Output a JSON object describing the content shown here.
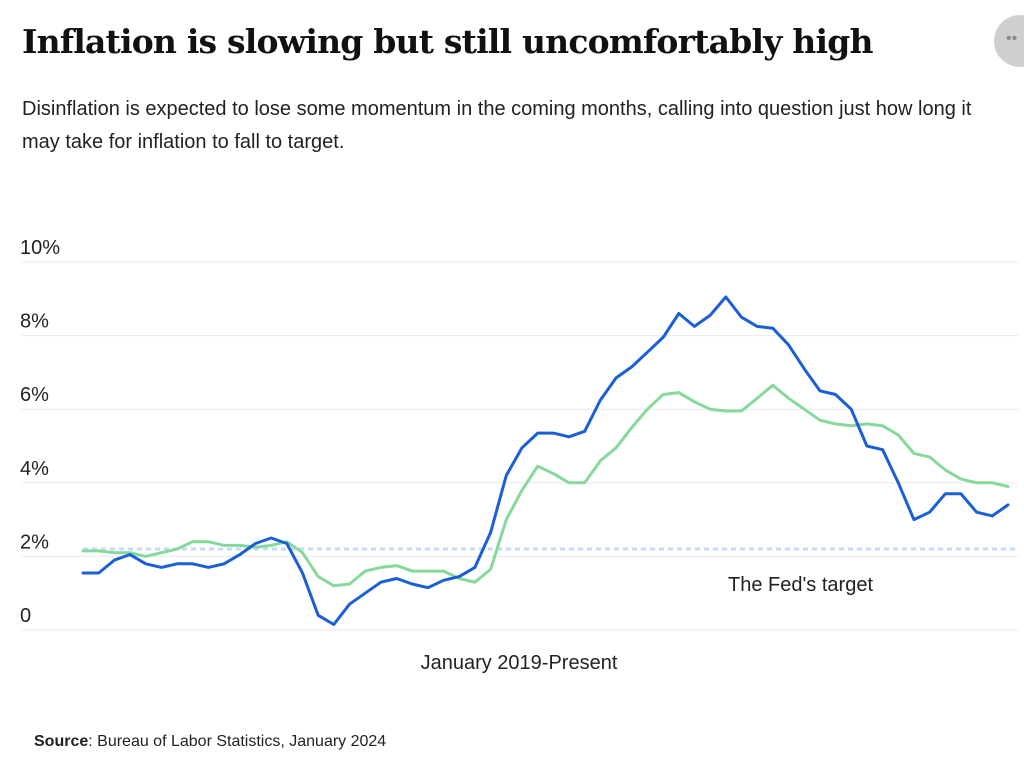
{
  "header": {
    "title": "Inflation is slowing but still uncomfortably high",
    "subtitle": "Disinflation is expected to lose some momentum in the coming months, calling into question just how long it may take for inflation to fall to target.",
    "more_icon": "ellipsis-icon"
  },
  "source": {
    "label": "Source",
    "text": ": Bureau of Labor Statistics, January 2024"
  },
  "chart_data": {
    "type": "line",
    "xlabel": "January 2019-Present",
    "ylabel": "",
    "ylim": [
      0,
      10
    ],
    "y_ticks": [
      {
        "value": 0,
        "label": "0"
      },
      {
        "value": 2,
        "label": "2%"
      },
      {
        "value": 4,
        "label": "4%"
      },
      {
        "value": 6,
        "label": "6%"
      },
      {
        "value": 8,
        "label": "8%"
      },
      {
        "value": 10,
        "label": "10%"
      }
    ],
    "x": [
      "2019-01",
      "2019-02",
      "2019-03",
      "2019-04",
      "2019-05",
      "2019-06",
      "2019-07",
      "2019-08",
      "2019-09",
      "2019-10",
      "2019-11",
      "2019-12",
      "2020-01",
      "2020-02",
      "2020-03",
      "2020-04",
      "2020-05",
      "2020-06",
      "2020-07",
      "2020-08",
      "2020-09",
      "2020-10",
      "2020-11",
      "2020-12",
      "2021-01",
      "2021-02",
      "2021-03",
      "2021-04",
      "2021-05",
      "2021-06",
      "2021-07",
      "2021-08",
      "2021-09",
      "2021-10",
      "2021-11",
      "2021-12",
      "2022-01",
      "2022-02",
      "2022-03",
      "2022-04",
      "2022-05",
      "2022-06",
      "2022-07",
      "2022-08",
      "2022-09",
      "2022-10",
      "2022-11",
      "2022-12",
      "2023-01",
      "2023-02",
      "2023-03",
      "2023-04",
      "2023-05",
      "2023-06",
      "2023-07",
      "2023-08",
      "2023-09",
      "2023-10",
      "2023-11",
      "2023-12"
    ],
    "series": [
      {
        "color": "#1a5fd6",
        "values": [
          1.55,
          1.55,
          1.9,
          2.05,
          1.8,
          1.7,
          1.8,
          1.8,
          1.7,
          1.8,
          2.05,
          2.35,
          2.5,
          2.35,
          1.55,
          0.4,
          0.15,
          0.7,
          1.0,
          1.3,
          1.4,
          1.25,
          1.15,
          1.35,
          1.45,
          1.7,
          2.65,
          4.2,
          4.95,
          5.35,
          5.35,
          5.25,
          5.4,
          6.25,
          6.85,
          7.15,
          7.55,
          7.95,
          8.6,
          8.25,
          8.55,
          9.05,
          8.5,
          8.25,
          8.2,
          7.75,
          7.1,
          6.5,
          6.4,
          6.0,
          5.0,
          4.9,
          4.0,
          3.0,
          3.2,
          3.7,
          3.7,
          3.2,
          3.1,
          3.4
        ]
      },
      {
        "color": "#86d99a",
        "values": [
          2.15,
          2.15,
          2.1,
          2.1,
          2.0,
          2.1,
          2.2,
          2.4,
          2.4,
          2.3,
          2.3,
          2.25,
          2.3,
          2.4,
          2.1,
          1.45,
          1.2,
          1.25,
          1.6,
          1.7,
          1.75,
          1.6,
          1.6,
          1.6,
          1.4,
          1.3,
          1.65,
          3.0,
          3.8,
          4.45,
          4.25,
          4.0,
          4.0,
          4.6,
          4.95,
          5.5,
          6.0,
          6.4,
          6.45,
          6.2,
          6.0,
          5.95,
          5.95,
          6.3,
          6.65,
          6.3,
          6.0,
          5.7,
          5.6,
          5.55,
          5.6,
          5.55,
          5.3,
          4.8,
          4.7,
          4.35,
          4.1,
          4.0,
          4.0,
          3.9
        ]
      }
    ],
    "target": {
      "value": 2.2,
      "label": "The Fed's target",
      "color": "#c6dbf5"
    },
    "grid": true,
    "legend": "none"
  }
}
